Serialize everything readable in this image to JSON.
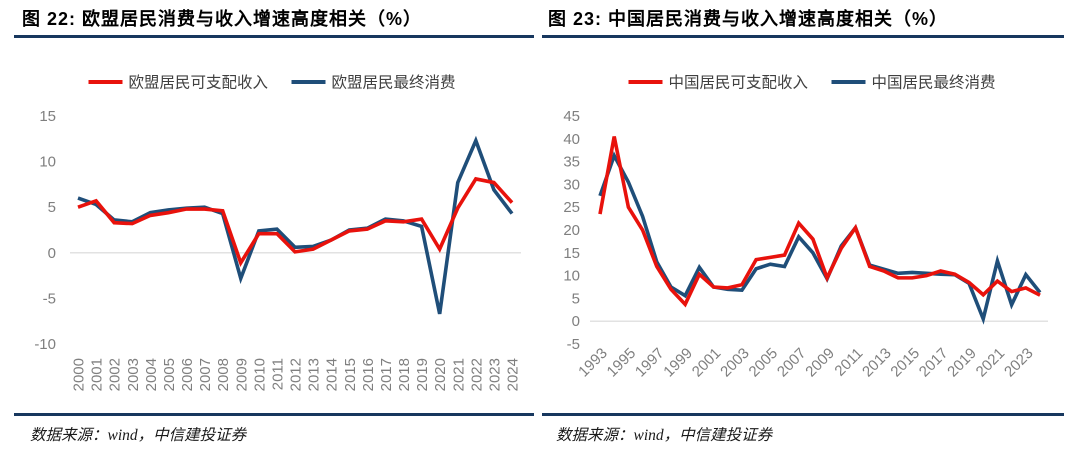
{
  "figures": [
    {
      "source": "数据来源：wind，中信建投证券"
    },
    {
      "source": "数据来源：wind，中信建投证券"
    }
  ],
  "colors": {
    "rule_navy": "#17375e",
    "income_red": "#e8120c",
    "consumption_blue": "#1f4e79",
    "axis_gray": "#7f7f7f",
    "gridline": "#d9d9d9",
    "legend_text": "#404040"
  },
  "chart_data": [
    {
      "type": "line",
      "title": "图 22: 欧盟居民消费与收入增速高度相关（%）",
      "x": [
        2000,
        2001,
        2002,
        2003,
        2004,
        2005,
        2006,
        2007,
        2008,
        2009,
        2010,
        2011,
        2012,
        2013,
        2014,
        2015,
        2016,
        2017,
        2018,
        2019,
        2020,
        2021,
        2022,
        2023,
        2024
      ],
      "series": [
        {
          "name": "欧盟居民可支配收入",
          "key": "eu-disposable-income",
          "color": "#e8120c",
          "values": [
            5.0,
            5.7,
            3.3,
            3.2,
            4.1,
            4.4,
            4.8,
            4.8,
            4.6,
            -1.1,
            2.1,
            2.1,
            0.1,
            0.4,
            1.4,
            2.4,
            2.6,
            3.5,
            3.4,
            3.7,
            0.4,
            4.9,
            8.1,
            7.7,
            5.5
          ]
        },
        {
          "name": "欧盟居民最终消费",
          "key": "eu-final-consumption",
          "color": "#1f4e79",
          "values": [
            6.0,
            5.3,
            3.6,
            3.4,
            4.4,
            4.7,
            4.9,
            5.0,
            4.3,
            -2.8,
            2.4,
            2.6,
            0.6,
            0.7,
            1.4,
            2.5,
            2.7,
            3.7,
            3.5,
            2.9,
            -6.7,
            7.7,
            12.3,
            6.9,
            4.3
          ]
        }
      ],
      "ylim": [
        -10,
        15
      ],
      "yticks": [
        15,
        10,
        5,
        0,
        -5,
        -10
      ],
      "grid": "zero-line-only",
      "legend_position": "top",
      "x_tick_step": 1,
      "x_tick_rotation": -90
    },
    {
      "type": "line",
      "title": "图 23: 中国居民消费与收入增速高度相关（%）",
      "x": [
        1993,
        1994,
        1995,
        1996,
        1997,
        1998,
        1999,
        2000,
        2001,
        2002,
        2003,
        2004,
        2005,
        2006,
        2007,
        2008,
        2009,
        2010,
        2011,
        2012,
        2013,
        2014,
        2015,
        2016,
        2017,
        2018,
        2019,
        2020,
        2021,
        2022,
        2023,
        2024
      ],
      "series": [
        {
          "name": "中国居民可支配收入",
          "key": "cn-disposable-income",
          "color": "#e8120c",
          "values": [
            23.5,
            40.5,
            25.0,
            20.0,
            12.0,
            7.0,
            3.7,
            10.3,
            7.5,
            7.3,
            8.0,
            13.5,
            14.0,
            14.5,
            21.5,
            18.0,
            9.5,
            16.0,
            20.5,
            12.0,
            11.0,
            9.5,
            9.5,
            10.0,
            11.0,
            10.3,
            8.5,
            5.8,
            8.8,
            6.5,
            7.3,
            5.7
          ]
        },
        {
          "name": "中国居民最终消费",
          "key": "cn-final-consumption",
          "color": "#1f4e79",
          "values": [
            27.5,
            36.3,
            30.5,
            23.0,
            13.0,
            7.5,
            5.6,
            11.8,
            7.5,
            7.0,
            6.8,
            11.5,
            12.5,
            12.0,
            18.5,
            15.0,
            9.3,
            16.5,
            20.5,
            12.3,
            11.4,
            10.5,
            10.7,
            10.5,
            10.3,
            10.2,
            8.3,
            0.5,
            13.2,
            3.6,
            10.2,
            6.3
          ]
        }
      ],
      "ylim": [
        -5,
        45
      ],
      "yticks": [
        45,
        40,
        35,
        30,
        25,
        20,
        15,
        10,
        5,
        0,
        -5
      ],
      "grid": "zero-line-only",
      "legend_position": "top",
      "x_tick_step": 2,
      "x_tick_rotation": -45
    }
  ]
}
